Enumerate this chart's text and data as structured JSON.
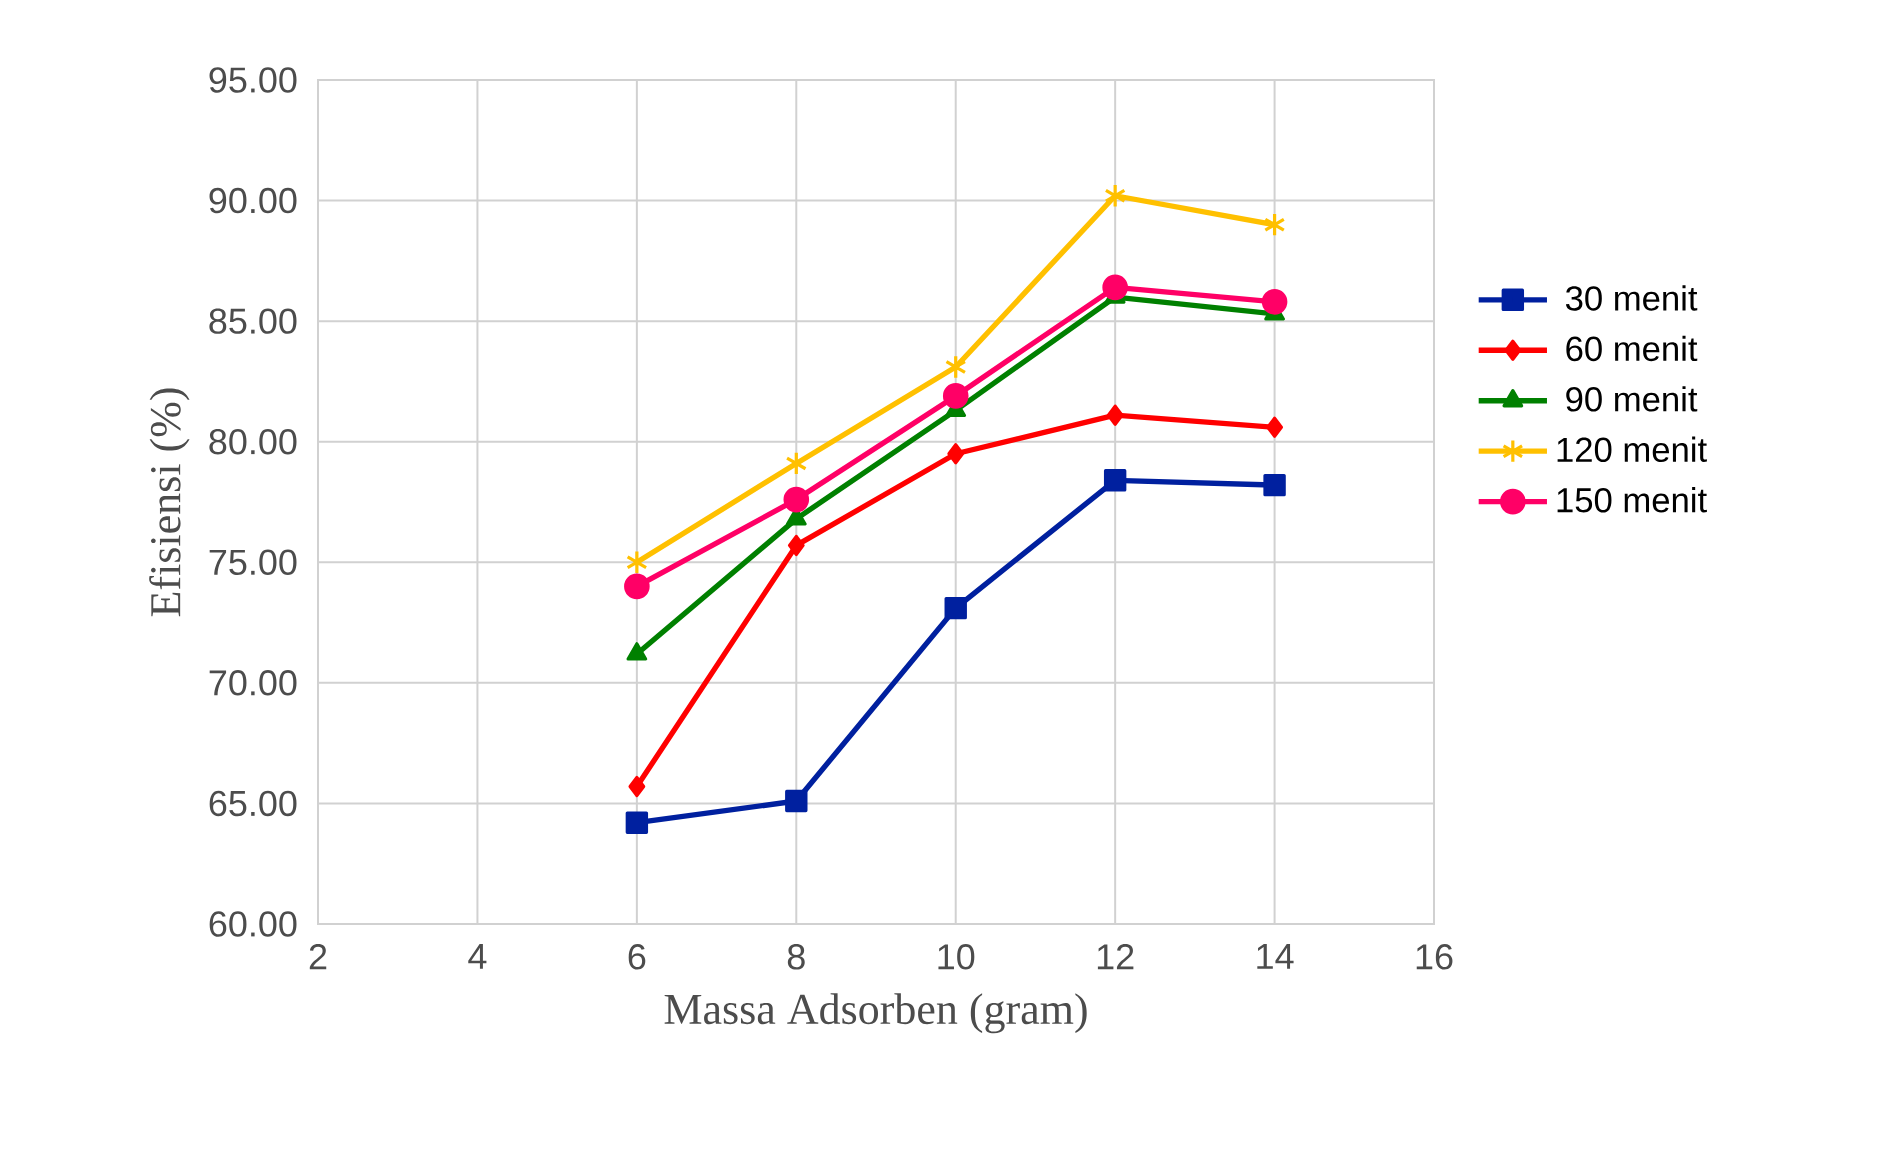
{
  "chart_data": {
    "type": "line",
    "xlabel": "Massa Adsorben (gram)",
    "ylabel": "Efisiensi (%)",
    "x": [
      6,
      8,
      10,
      12,
      14
    ],
    "xlim": [
      2,
      16
    ],
    "xticks": [
      2,
      4,
      6,
      8,
      10,
      12,
      14,
      16
    ],
    "ylim": [
      60,
      95
    ],
    "yticks": [
      {
        "value": 60,
        "label": "60.00"
      },
      {
        "value": 65,
        "label": "65.00"
      },
      {
        "value": 70,
        "label": "70.00"
      },
      {
        "value": 75,
        "label": "75.00"
      },
      {
        "value": 80,
        "label": "80.00"
      },
      {
        "value": 85,
        "label": "85.00"
      },
      {
        "value": 90,
        "label": "90.00"
      },
      {
        "value": 95,
        "label": "95.00"
      }
    ],
    "grid": true,
    "legend": "right",
    "line_style": "solid",
    "series": [
      {
        "name": "30 menit",
        "color": "#00209f",
        "marker": "square",
        "values": [
          64.2,
          65.1,
          73.1,
          78.4,
          78.2
        ]
      },
      {
        "name": "60 menit",
        "color": "#ff0000",
        "marker": "diamond",
        "values": [
          65.7,
          75.7,
          79.5,
          81.1,
          80.6
        ]
      },
      {
        "name": "90 menit",
        "color": "#008000",
        "marker": "triangle",
        "values": [
          71.2,
          76.8,
          81.3,
          86.0,
          85.3
        ]
      },
      {
        "name": "120 menit",
        "color": "#ffc000",
        "marker": "cross",
        "values": [
          75.0,
          79.1,
          83.1,
          90.2,
          89.0
        ]
      },
      {
        "name": "150 menit",
        "color": "#ff0066",
        "marker": "circle",
        "values": [
          74.0,
          77.6,
          81.9,
          86.4,
          85.8
        ]
      }
    ]
  }
}
